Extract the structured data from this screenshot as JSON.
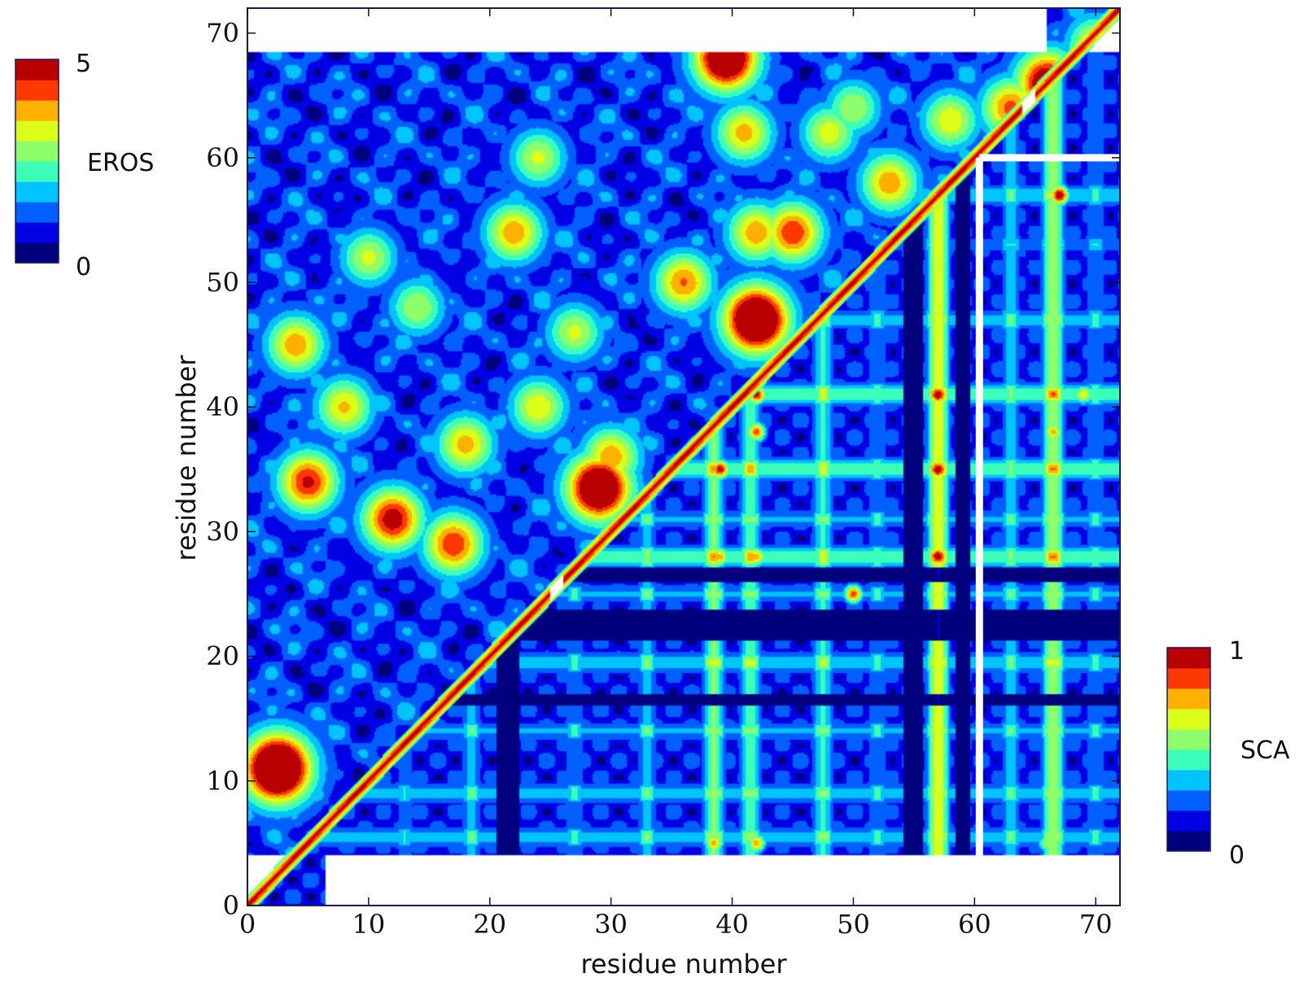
{
  "chart_data": {
    "type": "heatmap",
    "title": "",
    "xlabel": "residue number",
    "ylabel": "residue number",
    "xlim": [
      0,
      72
    ],
    "ylim": [
      0,
      72
    ],
    "x_ticks": [
      "0",
      "10",
      "20",
      "30",
      "40",
      "50",
      "60",
      "70"
    ],
    "y_ticks": [
      "0",
      "10",
      "20",
      "30",
      "40",
      "50",
      "60",
      "70"
    ],
    "grid": false,
    "data_region": {
      "x_min": 0,
      "x_max": 72,
      "y_min": 4,
      "y_max": 68.5
    },
    "gap_lines": [
      {
        "orientation": "vertical",
        "x": 60.4,
        "y_from": 4,
        "y_to": 60
      },
      {
        "orientation": "horizontal",
        "y": 60,
        "x_from": 60.4,
        "x_to": 72
      }
    ],
    "upper_triangle": {
      "measure": "EROS",
      "range": [
        0,
        5
      ],
      "hotspots": [
        {
          "x": 39.5,
          "y": 68,
          "v": 4.2
        },
        {
          "x": 42,
          "y": 47,
          "v": 4.6
        },
        {
          "x": 29,
          "y": 33.5,
          "v": 4.3
        },
        {
          "x": 2.5,
          "y": 11,
          "v": 5.0
        },
        {
          "x": 45,
          "y": 54,
          "v": 3.0
        },
        {
          "x": 42,
          "y": 54,
          "v": 2.6
        },
        {
          "x": 22,
          "y": 54,
          "v": 2.6
        },
        {
          "x": 10,
          "y": 52,
          "v": 2.1
        },
        {
          "x": 4,
          "y": 45,
          "v": 2.6
        },
        {
          "x": 8,
          "y": 40,
          "v": 2.4
        },
        {
          "x": 5,
          "y": 34,
          "v": 3.1
        },
        {
          "x": 12,
          "y": 31,
          "v": 3.3
        },
        {
          "x": 17,
          "y": 29,
          "v": 3.0
        },
        {
          "x": 18,
          "y": 37,
          "v": 2.5
        },
        {
          "x": 24,
          "y": 40,
          "v": 2.3
        },
        {
          "x": 30,
          "y": 36,
          "v": 2.6
        },
        {
          "x": 36,
          "y": 50,
          "v": 2.7
        },
        {
          "x": 41,
          "y": 62,
          "v": 2.5
        },
        {
          "x": 48,
          "y": 62,
          "v": 2.2
        },
        {
          "x": 53,
          "y": 58,
          "v": 2.6
        },
        {
          "x": 58,
          "y": 63,
          "v": 2.3
        },
        {
          "x": 63,
          "y": 64,
          "v": 2.8
        },
        {
          "x": 66,
          "y": 66,
          "v": 3.7
        },
        {
          "x": 70,
          "y": 69,
          "v": 2.4
        },
        {
          "x": 24,
          "y": 60,
          "v": 2.1
        },
        {
          "x": 14,
          "y": 48,
          "v": 2.0
        },
        {
          "x": 27,
          "y": 46,
          "v": 2.1
        },
        {
          "x": 50,
          "y": 64,
          "v": 2.0
        }
      ]
    },
    "lower_triangle": {
      "measure": "SCA",
      "range": [
        0,
        1
      ],
      "stripe_columns": [
        {
          "x": 38.5,
          "v": 0.7
        },
        {
          "x": 41.5,
          "v": 0.65
        },
        {
          "x": 47.5,
          "v": 0.55
        },
        {
          "x": 57,
          "v": 0.9
        },
        {
          "x": 66.5,
          "v": 0.8
        },
        {
          "x": 27,
          "v": 0.4
        },
        {
          "x": 33,
          "v": 0.45
        },
        {
          "x": 18.5,
          "v": 0.45
        },
        {
          "x": 13,
          "v": 0.35
        },
        {
          "x": 52,
          "v": 0.4
        },
        {
          "x": 63,
          "v": 0.45
        },
        {
          "x": 70,
          "v": 0.4
        }
      ],
      "stripe_rows": [
        {
          "y": 41,
          "v": 0.7
        },
        {
          "y": 35,
          "v": 0.7
        },
        {
          "y": 28,
          "v": 0.7
        },
        {
          "y": 19.5,
          "v": 0.55
        },
        {
          "y": 14,
          "v": 0.45
        },
        {
          "y": 9,
          "v": 0.5
        },
        {
          "y": 5.5,
          "v": 0.5
        },
        {
          "y": 47,
          "v": 0.5
        },
        {
          "y": 57,
          "v": 0.55
        },
        {
          "y": 25,
          "v": 0.45
        },
        {
          "y": 53,
          "v": 0.35
        },
        {
          "y": 31,
          "v": 0.45
        }
      ],
      "dark_bands_y": [
        {
          "y": 22.5,
          "half": 1.2
        },
        {
          "y": 26.5,
          "half": 0.6
        },
        {
          "y": 16.5,
          "half": 0.5
        }
      ],
      "dark_bands_x": [
        {
          "x": 55,
          "half": 0.8
        },
        {
          "x": 21.5,
          "half": 1.0
        },
        {
          "x": 59,
          "half": 0.6
        }
      ],
      "hotspots": [
        {
          "x": 57,
          "y": 28,
          "v": 1.0
        },
        {
          "x": 57,
          "y": 35,
          "v": 1.0
        },
        {
          "x": 57,
          "y": 41,
          "v": 1.0
        },
        {
          "x": 67,
          "y": 57,
          "v": 1.0
        },
        {
          "x": 57,
          "y": 57,
          "v": 0.95
        },
        {
          "x": 42,
          "y": 41,
          "v": 0.95
        },
        {
          "x": 39,
          "y": 35,
          "v": 0.95
        },
        {
          "x": 42,
          "y": 38,
          "v": 0.85
        },
        {
          "x": 50,
          "y": 25,
          "v": 0.85
        },
        {
          "x": 66.5,
          "y": 41,
          "v": 0.85
        },
        {
          "x": 66.5,
          "y": 38,
          "v": 0.75
        },
        {
          "x": 38.5,
          "y": 5,
          "v": 0.75
        },
        {
          "x": 42,
          "y": 5,
          "v": 0.75
        },
        {
          "x": 39,
          "y": 28,
          "v": 0.75
        },
        {
          "x": 42,
          "y": 28,
          "v": 0.75
        },
        {
          "x": 69,
          "y": 41,
          "v": 0.7
        },
        {
          "x": 66,
          "y": 5,
          "v": 0.6
        }
      ]
    },
    "diagonal_value": 1.0,
    "diagonal_breaks": [
      {
        "position": 25.5,
        "offset_upper": 1.3,
        "offset_lower": -0.4
      },
      {
        "position": 64.5,
        "offset_upper": 1.3,
        "offset_lower": -0.4
      }
    ],
    "colormap": [
      "#00007f",
      "#0000e5",
      "#0060ff",
      "#00c4ff",
      "#3cffba",
      "#8cff6a",
      "#dcff1a",
      "#ffb000",
      "#ff3800",
      "#b80000"
    ],
    "colorbars": [
      {
        "label": "EROS",
        "min_label": "0",
        "max_label": "5",
        "levels": 10
      },
      {
        "label": "SCA",
        "min_label": "0",
        "max_label": "1",
        "levels": 10
      }
    ]
  }
}
